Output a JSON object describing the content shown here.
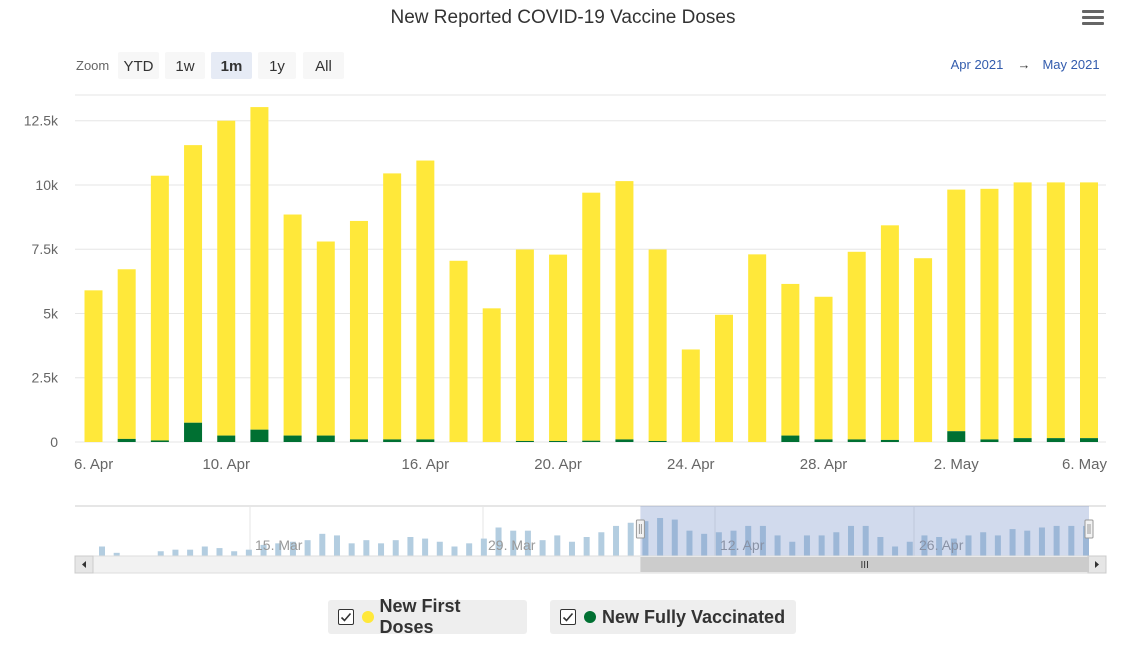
{
  "chart_data": {
    "type": "bar",
    "stacked": true,
    "title": "New Reported COVID-19 Vaccine Doses",
    "xlabel": "",
    "ylabel": "",
    "ylim": [
      0,
      13500
    ],
    "y_ticks": [
      {
        "value": 0,
        "label": "0"
      },
      {
        "value": 2500,
        "label": "2.5k"
      },
      {
        "value": 5000,
        "label": "5k"
      },
      {
        "value": 7500,
        "label": "7.5k"
      },
      {
        "value": 10000,
        "label": "10k"
      },
      {
        "value": 12500,
        "label": "12.5k"
      }
    ],
    "x_ticks": [
      {
        "index": 0,
        "label": "6. Apr"
      },
      {
        "index": 4,
        "label": "10. Apr"
      },
      {
        "index": 10,
        "label": "16. Apr"
      },
      {
        "index": 14,
        "label": "20. Apr"
      },
      {
        "index": 18,
        "label": "24. Apr"
      },
      {
        "index": 22,
        "label": "28. Apr"
      },
      {
        "index": 26,
        "label": "2. May"
      },
      {
        "index": 30,
        "label": "6. May"
      }
    ],
    "categories": [
      "6 Apr",
      "7 Apr",
      "8 Apr",
      "9 Apr",
      "10 Apr",
      "11 Apr",
      "12 Apr",
      "13 Apr",
      "14 Apr",
      "15 Apr",
      "16 Apr",
      "17 Apr",
      "18 Apr",
      "19 Apr",
      "20 Apr",
      "21 Apr",
      "22 Apr",
      "23 Apr",
      "24 Apr",
      "25 Apr",
      "26 Apr",
      "27 Apr",
      "28 Apr",
      "29 Apr",
      "30 Apr",
      "1 May",
      "2 May",
      "3 May",
      "4 May",
      "5 May",
      "6 May"
    ],
    "series": [
      {
        "name": "New First Doses",
        "color": "#ffe83a",
        "values": [
          5900,
          6600,
          10300,
          10800,
          12250,
          12550,
          8600,
          7550,
          8500,
          10350,
          10850,
          7050,
          5200,
          7450,
          7250,
          9650,
          10050,
          7450,
          3600,
          4950,
          7300,
          5900,
          5550,
          7300,
          8350,
          7150,
          9400,
          9750,
          9950,
          9950,
          9950
        ]
      },
      {
        "name": "New Fully Vaccinated",
        "color": "#007032",
        "values": [
          0,
          120,
          60,
          750,
          250,
          480,
          250,
          250,
          100,
          100,
          100,
          0,
          0,
          40,
          40,
          50,
          100,
          40,
          0,
          0,
          0,
          250,
          100,
          100,
          80,
          0,
          420,
          100,
          150,
          150,
          150
        ]
      }
    ],
    "legend": "bottom-center"
  },
  "toolbar": {
    "zoom_label": "Zoom",
    "buttons": [
      {
        "label": "YTD",
        "state": "normal"
      },
      {
        "label": "1w",
        "state": "normal"
      },
      {
        "label": "1m",
        "state": "selected"
      },
      {
        "label": "1y",
        "state": "disabled"
      },
      {
        "label": "All",
        "state": "normal"
      }
    ],
    "range_from": "Apr 2021",
    "range_arrow": "→",
    "range_to": "May 2021"
  },
  "navigator": {
    "labels": [
      "15. Mar",
      "29. Mar",
      "12. Apr",
      "26. Apr"
    ],
    "scrollbar_grip": "III",
    "left_arrow": "◂",
    "right_arrow": "▸",
    "values": [
      0.3,
      0.1,
      0,
      0,
      0.15,
      0.2,
      0.2,
      0.3,
      0.25,
      0.15,
      0.2,
      0.35,
      0.4,
      0.45,
      0.5,
      0.7,
      0.65,
      0.4,
      0.5,
      0.4,
      0.5,
      0.6,
      0.55,
      0.45,
      0.3,
      0.4,
      0.55,
      0.9,
      0.8,
      0.8,
      0.5,
      0.65,
      0.45,
      0.6,
      0.75,
      0.95,
      1.05,
      1.1,
      1.2,
      1.15,
      0.8,
      0.7,
      0.75,
      0.8,
      0.95,
      0.95,
      0.65,
      0.45,
      0.65,
      0.65,
      0.75,
      0.95,
      0.95,
      0.6,
      0.3,
      0.45,
      0.65,
      0.6,
      0.55,
      0.65,
      0.75,
      0.65,
      0.85,
      0.8,
      0.9,
      0.95,
      0.95,
      0.95
    ],
    "selection_start_index": 37
  },
  "colors": {
    "first_doses": "#ffe83a",
    "fully_vaccinated": "#007032",
    "navigator_series": "#b3cde0",
    "navigator_mask": "#6685c2",
    "grid": "#e6e6e6"
  }
}
